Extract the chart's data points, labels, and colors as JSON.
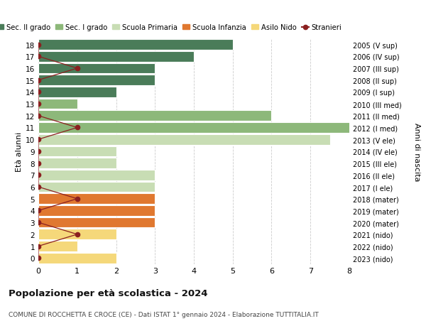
{
  "ages": [
    18,
    17,
    16,
    15,
    14,
    13,
    12,
    11,
    10,
    9,
    8,
    7,
    6,
    5,
    4,
    3,
    2,
    1,
    0
  ],
  "right_labels": [
    "2005 (V sup)",
    "2006 (IV sup)",
    "2007 (III sup)",
    "2008 (II sup)",
    "2009 (I sup)",
    "2010 (III med)",
    "2011 (II med)",
    "2012 (I med)",
    "2013 (V ele)",
    "2014 (IV ele)",
    "2015 (III ele)",
    "2016 (II ele)",
    "2017 (I ele)",
    "2018 (mater)",
    "2019 (mater)",
    "2020 (mater)",
    "2021 (nido)",
    "2022 (nido)",
    "2023 (nido)"
  ],
  "bar_values": [
    5,
    4,
    3,
    3,
    2,
    1,
    6,
    8.2,
    7.5,
    2,
    2,
    3,
    3,
    3,
    3,
    3,
    2,
    1,
    2
  ],
  "bar_colors": [
    "#4a7c59",
    "#4a7c59",
    "#4a7c59",
    "#4a7c59",
    "#4a7c59",
    "#8db87a",
    "#8db87a",
    "#8db87a",
    "#c8ddb4",
    "#c8ddb4",
    "#c8ddb4",
    "#c8ddb4",
    "#c8ddb4",
    "#e07830",
    "#e07830",
    "#e07830",
    "#f5d87a",
    "#f5d87a",
    "#f5d87a"
  ],
  "stranieri_values": [
    0,
    0,
    1,
    0,
    0,
    0,
    0,
    1,
    0,
    0,
    0,
    0,
    0,
    1,
    0,
    0,
    1,
    0,
    0
  ],
  "stranieri_color": "#8b2020",
  "legend": [
    {
      "label": "Sec. II grado",
      "color": "#4a7c59"
    },
    {
      "label": "Sec. I grado",
      "color": "#8db87a"
    },
    {
      "label": "Scuola Primaria",
      "color": "#c8ddb4"
    },
    {
      "label": "Scuola Infanzia",
      "color": "#e07830"
    },
    {
      "label": "Asilo Nido",
      "color": "#f5d87a"
    }
  ],
  "stranieri_label": "Stranieri",
  "title": "Popolazione per età scolastica - 2024",
  "subtitle": "COMUNE DI ROCCHETTA E CROCE (CE) - Dati ISTAT 1° gennaio 2024 - Elaborazione TUTTITALIA.IT",
  "xlabel_right": "Anni di nascita",
  "ylabel": "Età alunni",
  "xlim": [
    0,
    8
  ],
  "ylim": [
    -0.5,
    18.5
  ],
  "bg_color": "#ffffff",
  "grid_color": "#cccccc",
  "bar_height": 0.88,
  "fig_width": 6.0,
  "fig_height": 4.6,
  "dpi": 100
}
